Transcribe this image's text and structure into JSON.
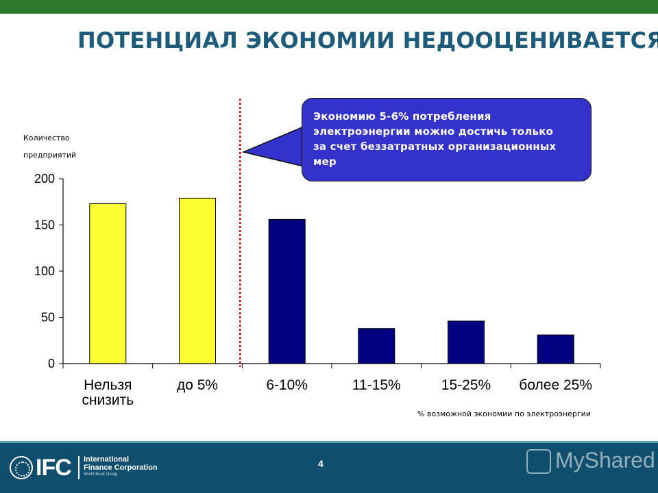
{
  "slide": {
    "title": "ПОТЕНЦИАЛ ЭКОНОМИИ НЕДООЦЕНИВАЕТСЯ",
    "page_number": "4"
  },
  "callout": {
    "lines": [
      "Экономию 5-6% потребления",
      "электроэнергии можно достичь только",
      "за счет беззатратных организационных",
      "мер"
    ]
  },
  "footer": {
    "logo_letters": "IFC",
    "org_name_line1": "International",
    "org_name_line2": "Finance Corporation",
    "org_sub": "World Bank Group",
    "watermark": "MyShared"
  },
  "chart_data": {
    "type": "bar",
    "categories": [
      [
        "Нельзя",
        "снизить"
      ],
      [
        "до 5%"
      ],
      [
        "6-10%"
      ],
      [
        "11-15%"
      ],
      [
        "15-25%"
      ],
      [
        "более 25%"
      ]
    ],
    "values": [
      173,
      179,
      156,
      38,
      46,
      31
    ],
    "bar_colors": [
      "#ffff33",
      "#ffff33",
      "#000080",
      "#000080",
      "#000080",
      "#000080"
    ],
    "ylabel_lines": [
      "Количество",
      "предприятий"
    ],
    "xlabel": "% возможной экономии по электроэнергии",
    "ylim": [
      0,
      200
    ],
    "yticks": [
      0,
      50,
      100,
      150,
      200
    ],
    "grid": false,
    "divider_color": "#cc0000"
  }
}
